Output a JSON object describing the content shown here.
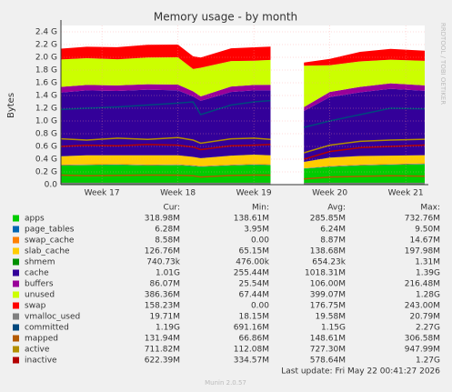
{
  "chart_data": {
    "type": "area",
    "title": "Memory usage - by month",
    "ylabel": "Bytes",
    "side_text": "RRDTOOL / TOBI OETIKER",
    "footer": "Last update: Fri May 22 00:41:27 2026",
    "version": "Munin 2.0.57",
    "x": [
      16.46,
      16.8,
      17.2,
      17.6,
      18.0,
      18.2,
      18.3,
      18.7,
      19.0,
      19.22,
      19.4,
      19.66,
      20.0,
      20.4,
      20.8,
      21.25
    ],
    "xlim": [
      16.46,
      21.25
    ],
    "xticks": [
      {
        "value": 17,
        "label": "Week 17"
      },
      {
        "value": 18,
        "label": "Week 18"
      },
      {
        "value": 19,
        "label": "Week 19"
      },
      {
        "value": 20,
        "label": "Week 20"
      },
      {
        "value": 21,
        "label": "Week 21"
      }
    ],
    "ylim": [
      0,
      2500000000
    ],
    "yticks": [
      {
        "value": 0,
        "label": "0.0"
      },
      {
        "value": 200000000,
        "label": "0.2 G"
      },
      {
        "value": 400000000,
        "label": "0.4 G"
      },
      {
        "value": 600000000,
        "label": "0.6 G"
      },
      {
        "value": 800000000,
        "label": "0.8 G"
      },
      {
        "value": 1000000000,
        "label": "1.0 G"
      },
      {
        "value": 1200000000,
        "label": "1.2 G"
      },
      {
        "value": 1400000000,
        "label": "1.4 G"
      },
      {
        "value": 1600000000,
        "label": "1.6 G"
      },
      {
        "value": 1800000000,
        "label": "1.8 G"
      },
      {
        "value": 2000000000,
        "label": "2.0 G"
      },
      {
        "value": 2200000000,
        "label": "2.2 G"
      },
      {
        "value": 2400000000,
        "label": "2.4 G"
      }
    ],
    "grid": true,
    "stat_headers": [
      "Cur:",
      "Min:",
      "Avg:",
      "Max:"
    ],
    "series": [
      {
        "name": "apps",
        "color": "#00cc00",
        "style": "stack",
        "cur": "318.98M",
        "min": "138.61M",
        "avg": "285.85M",
        "max": "732.76M",
        "values": [
          300000000.0,
          305000000.0,
          310000000.0,
          300000000.0,
          305000000.0,
          290000000.0,
          280000000.0,
          300000000.0,
          310000000.0,
          305000000.0,
          null,
          250000000.0,
          280000000.0,
          300000000.0,
          310000000.0,
          320000000.0
        ]
      },
      {
        "name": "page_tables",
        "color": "#0066b3",
        "style": "stack",
        "cur": "6.28M",
        "min": "3.95M",
        "avg": "6.24M",
        "max": "9.50M",
        "values": [
          6000000.0,
          6000000.0,
          6000000.0,
          6000000.0,
          6000000.0,
          6000000.0,
          6000000.0,
          6000000.0,
          6000000.0,
          6000000.0,
          null,
          5000000.0,
          6000000.0,
          6000000.0,
          6000000.0,
          6000000.0
        ]
      },
      {
        "name": "swap_cache",
        "color": "#ff8000",
        "style": "stack",
        "cur": "8.58M",
        "min": "0.00",
        "avg": "8.87M",
        "max": "14.67M",
        "values": [
          9000000.0,
          9000000.0,
          9000000.0,
          9000000.0,
          9000000.0,
          9000000.0,
          9000000.0,
          9000000.0,
          9000000.0,
          9000000.0,
          null,
          2000000.0,
          8000000.0,
          9000000.0,
          9000000.0,
          9000000.0
        ]
      },
      {
        "name": "slab_cache",
        "color": "#ffcc00",
        "style": "stack",
        "cur": "126.76M",
        "min": "65.15M",
        "avg": "138.68M",
        "max": "197.98M",
        "values": [
          130000000.0,
          140000000.0,
          135000000.0,
          145000000.0,
          140000000.0,
          130000000.0,
          120000000.0,
          140000000.0,
          145000000.0,
          140000000.0,
          null,
          100000000.0,
          130000000.0,
          135000000.0,
          130000000.0,
          127000000.0
        ]
      },
      {
        "name": "shmem",
        "color": "#008f00",
        "style": "stack",
        "cur": "740.73k",
        "min": "476.00k",
        "avg": "654.23k",
        "max": "1.31M",
        "values": [
          700000.0,
          700000.0,
          700000.0,
          700000.0,
          700000.0,
          700000.0,
          700000.0,
          700000.0,
          700000.0,
          700000.0,
          null,
          500000.0,
          700000.0,
          700000.0,
          700000.0,
          700000.0
        ]
      },
      {
        "name": "cache",
        "color": "#330099",
        "style": "stack",
        "cur": "1.01G",
        "min": "255.44M",
        "avg": "1018.31M",
        "max": "1.39G",
        "values": [
          1000000000.0,
          1020000000.0,
          1010000000.0,
          1030000000.0,
          1020000000.0,
          950000000.0,
          900000000.0,
          1000000000.0,
          1010000000.0,
          1020000000.0,
          null,
          800000000.0,
          950000000.0,
          1000000000.0,
          1050000000.0,
          1010000000.0
        ]
      },
      {
        "name": "buffers",
        "color": "#990099",
        "style": "stack",
        "cur": "86.07M",
        "min": "25.54M",
        "avg": "106.00M",
        "max": "216.48M",
        "values": [
          90000000.0,
          85000000.0,
          88000000.0,
          86000000.0,
          90000000.0,
          80000000.0,
          70000000.0,
          85000000.0,
          86000000.0,
          88000000.0,
          null,
          60000000.0,
          80000000.0,
          85000000.0,
          86000000.0,
          86000000.0
        ]
      },
      {
        "name": "unused",
        "color": "#ccff00",
        "style": "stack",
        "cur": "386.36M",
        "min": "67.44M",
        "avg": "399.07M",
        "max": "1.28G",
        "values": [
          430000000.0,
          420000000.0,
          410000000.0,
          420000000.0,
          430000000.0,
          350000000.0,
          450000000.0,
          400000000.0,
          380000000.0,
          390000000.0,
          null,
          650000000.0,
          420000000.0,
          400000000.0,
          370000000.0,
          386000000.0
        ]
      },
      {
        "name": "swap",
        "color": "#ff0000",
        "style": "stack",
        "cur": "158.23M",
        "min": "0.00",
        "avg": "176.75M",
        "max": "243.00M",
        "values": [
          170000000.0,
          180000000.0,
          190000000.0,
          200000000.0,
          200000000.0,
          200000000.0,
          160000000.0,
          200000000.0,
          210000000.0,
          210000000.0,
          null,
          50000000.0,
          100000000.0,
          150000000.0,
          170000000.0,
          158000000.0
        ]
      },
      {
        "name": "vmalloc_used",
        "color": "#808080",
        "style": "line",
        "cur": "19.71M",
        "min": "18.15M",
        "avg": "19.58M",
        "max": "20.79M",
        "values": [
          20000000.0,
          20000000.0,
          20000000.0,
          20000000.0,
          20000000.0,
          19000000.0,
          19000000.0,
          20000000.0,
          20000000.0,
          20000000.0,
          null,
          18000000.0,
          19000000.0,
          20000000.0,
          20000000.0,
          20000000.0
        ]
      },
      {
        "name": "committed",
        "color": "#00487d",
        "style": "line",
        "cur": "1.19G",
        "min": "691.16M",
        "avg": "1.15G",
        "max": "2.27G",
        "values": [
          1180000000.0,
          1200000000.0,
          1220000000.0,
          1250000000.0,
          1280000000.0,
          1300000000.0,
          1100000000.0,
          1250000000.0,
          1300000000.0,
          1320000000.0,
          null,
          900000000.0,
          1000000000.0,
          1100000000.0,
          1200000000.0,
          1190000000.0
        ]
      },
      {
        "name": "mapped",
        "color": "#b35a00",
        "style": "line",
        "cur": "131.94M",
        "min": "66.86M",
        "avg": "148.61M",
        "max": "306.58M",
        "values": [
          150000000.0,
          140000000.0,
          145000000.0,
          150000000.0,
          148000000.0,
          140000000.0,
          120000000.0,
          145000000.0,
          150000000.0,
          148000000.0,
          null,
          90000000.0,
          120000000.0,
          130000000.0,
          140000000.0,
          132000000.0
        ]
      },
      {
        "name": "active",
        "color": "#b38f00",
        "style": "line",
        "cur": "711.82M",
        "min": "112.08M",
        "avg": "727.30M",
        "max": "947.99M",
        "values": [
          720000000.0,
          700000000.0,
          730000000.0,
          710000000.0,
          740000000.0,
          700000000.0,
          650000000.0,
          720000000.0,
          730000000.0,
          710000000.0,
          null,
          500000000.0,
          620000000.0,
          680000000.0,
          700000000.0,
          712000000.0
        ]
      },
      {
        "name": "inactive",
        "color": "#b30000",
        "style": "line",
        "cur": "622.39M",
        "min": "334.57M",
        "avg": "578.64M",
        "max": "1.27G",
        "values": [
          600000000.0,
          620000000.0,
          610000000.0,
          630000000.0,
          620000000.0,
          590000000.0,
          550000000.0,
          610000000.0,
          620000000.0,
          630000000.0,
          null,
          400000000.0,
          520000000.0,
          580000000.0,
          600000000.0,
          622000000.0
        ]
      }
    ]
  }
}
